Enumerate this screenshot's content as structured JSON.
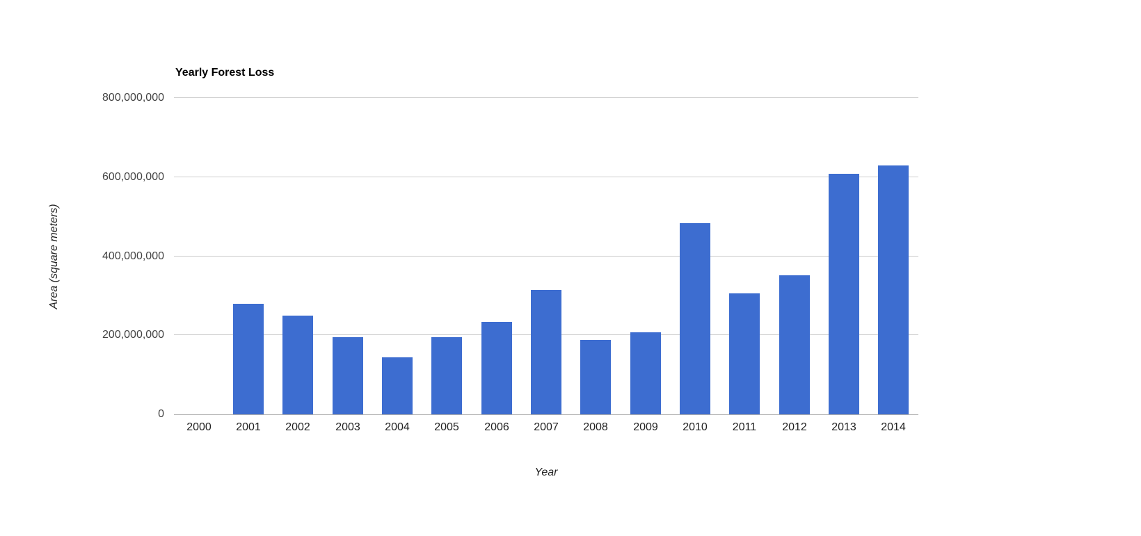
{
  "chart_data": {
    "type": "bar",
    "title": "Yearly Forest Loss",
    "xlabel": "Year",
    "ylabel": "Area (square meters)",
    "categories": [
      "2000",
      "2001",
      "2002",
      "2003",
      "2004",
      "2005",
      "2006",
      "2007",
      "2008",
      "2009",
      "2010",
      "2011",
      "2012",
      "2013",
      "2014"
    ],
    "values": [
      0,
      280000000,
      250000000,
      196000000,
      144000000,
      196000000,
      233000000,
      314000000,
      188000000,
      207000000,
      483000000,
      306000000,
      351000000,
      608000000,
      630000000
    ],
    "ylim": [
      0,
      800000000
    ],
    "yticks": [
      {
        "value": 0,
        "label": "0"
      },
      {
        "value": 200000000,
        "label": "200,000,000"
      },
      {
        "value": 400000000,
        "label": "400,000,000"
      },
      {
        "value": 600000000,
        "label": "600,000,000"
      },
      {
        "value": 800000000,
        "label": "800,000,000"
      }
    ],
    "grid": "horizontal",
    "legend": "none",
    "bar_color": "#3D6DD0",
    "background_color": "#FFFFFF"
  }
}
